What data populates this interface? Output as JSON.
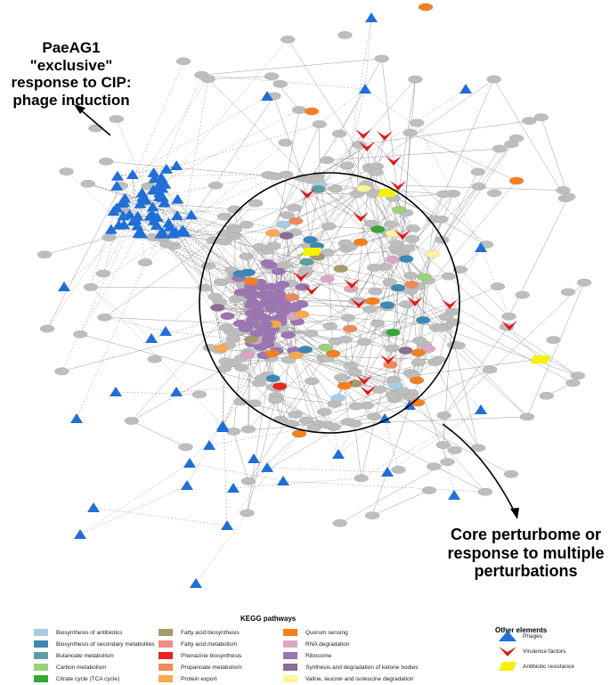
{
  "callouts": {
    "left": "PaeAG1 \"exclusive\" response to CIP: phage induction",
    "right": "Core perturbome or response to multiple perturbations"
  },
  "legend": {
    "kegg_title": "KEGG pathways",
    "kegg_items": [
      {
        "label": "Biosynthesis of antibiotics",
        "color": "#a6cde3"
      },
      {
        "label": "Biosynthesis of secondary metabolites",
        "color": "#3b87b5"
      },
      {
        "label": "Butanoate metabolism",
        "color": "#5f9ea0"
      },
      {
        "label": "Carbon metabolism",
        "color": "#98d27a"
      },
      {
        "label": "Citrate cycle (TCA cycle)",
        "color": "#34a834"
      },
      {
        "label": "Fatty acid biosynthesis",
        "color": "#a69a6d"
      },
      {
        "label": "Fatty acid metabolism",
        "color": "#f08c85"
      },
      {
        "label": "Phenazine biosynthesis",
        "color": "#e3261f"
      },
      {
        "label": "Propanoate metabolism",
        "color": "#ee8a5a"
      },
      {
        "label": "Protein export",
        "color": "#fba94a"
      },
      {
        "label": "Quorum sensing",
        "color": "#f57f1e"
      },
      {
        "label": "RNA degradation",
        "color": "#dba5c4"
      },
      {
        "label": "Ribosome",
        "color": "#9c73b3"
      },
      {
        "label": "Synthesis and degradation of ketone bodies",
        "color": "#8b6e93"
      },
      {
        "label": "Valine, leucine and isoleucine degradation",
        "color": "#fbf59b"
      }
    ],
    "other_title": "Other elements",
    "other_items": [
      {
        "label": "Phages",
        "icon": "blue-triangle-icon",
        "color": "#1f6fd6"
      },
      {
        "label": "Virulence factors",
        "icon": "red-chevron-icon",
        "color": "#e01616"
      },
      {
        "label": "Antibiotic resistance",
        "icon": "yellow-parallelogram-icon",
        "color": "#f7f000"
      }
    ]
  },
  "colors": {
    "edge": "#6b6b6b",
    "node_default": "#bdbdbd",
    "ribosome_node": "#9c73b3",
    "phage": "#1f6fd6",
    "virulence": "#e01616",
    "resistance": "#f7f000",
    "quorum": "#f57f1e",
    "circle": "#000000"
  }
}
